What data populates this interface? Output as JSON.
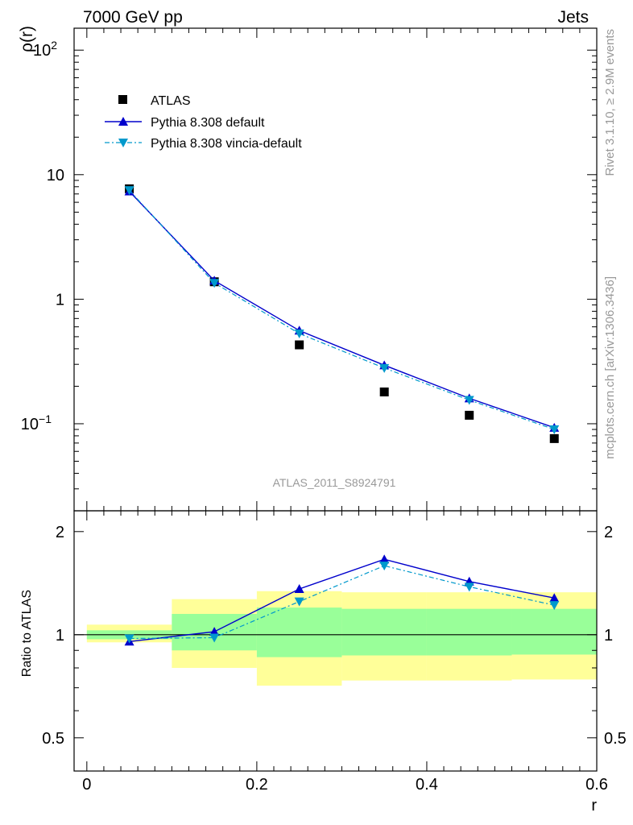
{
  "header": {
    "left": "7000 GeV pp",
    "right": "Jets"
  },
  "side_labels": {
    "rivet": "Rivet 3.1.10, ≥ 2.9M events",
    "source": "mcplots.cern.ch [arXiv:1306.3436]"
  },
  "analysis_id": "ATLAS_2011_S8924791",
  "colors": {
    "data": "#000000",
    "pythia_default": "#0000cc",
    "pythia_vincia": "#0099cc",
    "band_inner": "#99ff99",
    "band_outer": "#ffff99"
  },
  "chart_data": [
    {
      "type": "scatter",
      "title": "",
      "xlabel": "r",
      "ylabel": "ρ(r)",
      "xlim": [
        -0.015,
        0.6
      ],
      "ylim": [
        0.02,
        150
      ],
      "log_y": true,
      "y_ticks": [
        {
          "value": 100,
          "label": "10",
          "sup": "2"
        },
        {
          "value": 10,
          "label": "10",
          "sup": ""
        },
        {
          "value": 1,
          "label": "1",
          "sup": ""
        },
        {
          "value": 0.1,
          "label": "10",
          "sup": "−1"
        }
      ],
      "legend": {
        "placement": "top-left",
        "entries": [
          "ATLAS",
          "Pythia 8.308 default",
          "Pythia 8.308 vincia-default"
        ]
      },
      "series": [
        {
          "name": "ATLAS",
          "style": "square",
          "x": [
            0.05,
            0.15,
            0.25,
            0.35,
            0.45,
            0.55
          ],
          "y": [
            7.7,
            1.38,
            0.43,
            0.18,
            0.117,
            0.076
          ]
        },
        {
          "name": "Pythia 8.308 default",
          "style": "triangle-up",
          "x": [
            0.05,
            0.15,
            0.25,
            0.35,
            0.45,
            0.55
          ],
          "y": [
            7.35,
            1.41,
            0.56,
            0.295,
            0.16,
            0.093
          ]
        },
        {
          "name": "Pythia 8.308 vincia-default",
          "style": "triangle-down",
          "x": [
            0.05,
            0.15,
            0.25,
            0.35,
            0.45,
            0.55
          ],
          "y": [
            7.5,
            1.35,
            0.53,
            0.28,
            0.155,
            0.09
          ]
        }
      ]
    },
    {
      "type": "line",
      "title": "",
      "xlabel": "r",
      "ylabel": "Ratio to ATLAS",
      "xlim": [
        -0.015,
        0.6
      ],
      "ylim": [
        0.4,
        2.3
      ],
      "log_y": true,
      "x_ticks": [
        "0",
        "0.2",
        "0.4",
        "0.6"
      ],
      "y_ticks": [
        "0.5",
        "1",
        "2"
      ],
      "bands": {
        "bins": [
          [
            -0.0,
            0.1
          ],
          [
            0.1,
            0.2
          ],
          [
            0.2,
            0.3
          ],
          [
            0.3,
            0.4
          ],
          [
            0.4,
            0.5
          ],
          [
            0.5,
            0.6
          ]
        ],
        "inner": [
          [
            0.97,
            1.03
          ],
          [
            0.9,
            1.15
          ],
          [
            0.86,
            1.2
          ],
          [
            0.87,
            1.19
          ],
          [
            0.87,
            1.19
          ],
          [
            0.875,
            1.19
          ]
        ],
        "outer": [
          [
            0.95,
            1.07
          ],
          [
            0.8,
            1.27
          ],
          [
            0.71,
            1.34
          ],
          [
            0.735,
            1.33
          ],
          [
            0.735,
            1.33
          ],
          [
            0.74,
            1.33
          ]
        ]
      },
      "series": [
        {
          "name": "Pythia 8.308 default",
          "style": "triangle-up",
          "x": [
            0.05,
            0.15,
            0.25,
            0.35,
            0.45,
            0.55
          ],
          "y": [
            0.955,
            1.02,
            1.36,
            1.66,
            1.43,
            1.28
          ]
        },
        {
          "name": "Pythia 8.308 vincia-default",
          "style": "triangle-down",
          "x": [
            0.05,
            0.15,
            0.25,
            0.35,
            0.45,
            0.55
          ],
          "y": [
            0.975,
            0.98,
            1.25,
            1.59,
            1.38,
            1.22
          ]
        }
      ]
    }
  ]
}
